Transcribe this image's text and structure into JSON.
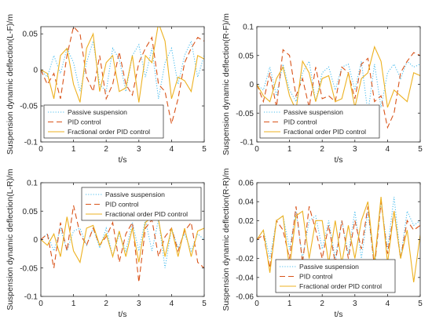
{
  "colors": {
    "passive": "#4DBEEE",
    "pid": "#D95319",
    "fractional": "#EDB120",
    "axis": "#262626"
  },
  "chart_data": [
    {
      "type": "line",
      "ylabel": "Suspension dynamic deflection(L-F)/m",
      "xlabel": "t/s",
      "xlim": [
        0,
        5
      ],
      "ylim": [
        -0.1,
        0.06
      ],
      "xticks": [
        0,
        1,
        2,
        3,
        4,
        5
      ],
      "yticks": [
        -0.1,
        -0.05,
        0,
        0.05
      ],
      "ytick_labels": [
        "-0.1",
        "-0.05",
        "0",
        "0.05"
      ],
      "legend_position": "bottom-left",
      "series": [
        {
          "name": "Passive suspension",
          "style": "dotted",
          "x": [
            0,
            0.2,
            0.4,
            0.6,
            0.8,
            1.0,
            1.2,
            1.4,
            1.6,
            1.8,
            2.0,
            2.2,
            2.4,
            2.6,
            2.8,
            3.0,
            3.2,
            3.4,
            3.6,
            3.8,
            4.0,
            4.2,
            4.4,
            4.6,
            4.8,
            5.0
          ],
          "y": [
            0,
            -0.01,
            0.02,
            -0.005,
            0.03,
            0.01,
            -0.03,
            0.01,
            0.04,
            -0.02,
            -0.03,
            0.03,
            0.015,
            -0.03,
            0.02,
            0.035,
            -0.01,
            0.03,
            -0.04,
            0.01,
            0.03,
            -0.02,
            0.02,
            0.04,
            -0.01,
            0.02
          ]
        },
        {
          "name": "PID control",
          "style": "dashed",
          "x": [
            0,
            0.2,
            0.4,
            0.6,
            0.8,
            1.0,
            1.2,
            1.4,
            1.6,
            1.8,
            2.0,
            2.2,
            2.4,
            2.6,
            2.8,
            3.0,
            3.2,
            3.4,
            3.6,
            3.8,
            4.0,
            4.2,
            4.4,
            4.6,
            4.8,
            5.0
          ],
          "y": [
            0,
            -0.02,
            -0.005,
            -0.04,
            0.02,
            0.06,
            0.05,
            -0.01,
            -0.03,
            0.02,
            -0.04,
            -0.02,
            0.025,
            -0.02,
            -0.035,
            0.01,
            0.03,
            0.045,
            -0.02,
            -0.03,
            -0.075,
            -0.04,
            0.01,
            0.03,
            0.045,
            0.04
          ]
        },
        {
          "name": "Fractional order PID control",
          "style": "solid",
          "x": [
            0,
            0.2,
            0.4,
            0.6,
            0.8,
            1.0,
            1.2,
            1.4,
            1.6,
            1.8,
            2.0,
            2.2,
            2.4,
            2.6,
            2.8,
            3.0,
            3.2,
            3.4,
            3.6,
            3.8,
            4.0,
            4.2,
            4.4,
            4.6,
            4.8,
            5.0
          ],
          "y": [
            0,
            -0.005,
            -0.04,
            0.02,
            0.03,
            -0.02,
            -0.045,
            0.03,
            0.05,
            -0.03,
            0.01,
            0.02,
            -0.03,
            -0.025,
            0.02,
            -0.045,
            0.02,
            0.01,
            0.065,
            0.04,
            -0.04,
            -0.01,
            -0.015,
            -0.03,
            0.02,
            0.015
          ]
        }
      ]
    },
    {
      "type": "line",
      "ylabel": "Suspension dynamic deflection(R-F)/m",
      "xlabel": "t/s",
      "xlim": [
        0,
        5
      ],
      "ylim": [
        -0.1,
        0.1
      ],
      "xticks": [
        0,
        1,
        2,
        3,
        4,
        5
      ],
      "yticks": [
        -0.1,
        -0.05,
        0,
        0.05,
        0.1
      ],
      "ytick_labels": [
        "-0.1",
        "-0.05",
        "0",
        "0.05",
        "0.1"
      ],
      "legend_position": "bottom-left",
      "series": [
        {
          "name": "Passive suspension",
          "style": "dotted",
          "x": [
            0,
            0.2,
            0.4,
            0.6,
            0.8,
            1.0,
            1.2,
            1.4,
            1.6,
            1.8,
            2.0,
            2.2,
            2.4,
            2.6,
            2.8,
            3.0,
            3.2,
            3.4,
            3.6,
            3.8,
            4.0,
            4.2,
            4.4,
            4.6,
            4.8,
            5.0
          ],
          "y": [
            0,
            -0.01,
            0.03,
            -0.02,
            0.035,
            -0.01,
            -0.03,
            0.02,
            0.04,
            -0.03,
            0.02,
            0.03,
            -0.01,
            0.03,
            0.035,
            -0.01,
            0.04,
            -0.05,
            0.035,
            -0.04,
            0.02,
            0.035,
            0.01,
            0.04,
            0.03,
            0.035
          ]
        },
        {
          "name": "PID control",
          "style": "dashed",
          "x": [
            0,
            0.2,
            0.4,
            0.6,
            0.8,
            1.0,
            1.2,
            1.4,
            1.6,
            1.8,
            2.0,
            2.2,
            2.4,
            2.6,
            2.8,
            3.0,
            3.2,
            3.4,
            3.6,
            3.8,
            4.0,
            4.2,
            4.4,
            4.6,
            4.8,
            5.0
          ],
          "y": [
            0,
            -0.03,
            0.02,
            -0.04,
            0.06,
            0.05,
            -0.02,
            0.01,
            -0.04,
            0.03,
            -0.025,
            -0.02,
            -0.03,
            0.03,
            0.02,
            -0.025,
            0.035,
            0.045,
            -0.03,
            -0.02,
            -0.075,
            -0.05,
            0.02,
            0.04,
            0.055,
            0.05
          ]
        },
        {
          "name": "Fractional order PID control",
          "style": "solid",
          "x": [
            0,
            0.2,
            0.4,
            0.6,
            0.8,
            1.0,
            1.2,
            1.4,
            1.6,
            1.8,
            2.0,
            2.2,
            2.4,
            2.6,
            2.8,
            3.0,
            3.2,
            3.4,
            3.6,
            3.8,
            4.0,
            4.2,
            4.4,
            4.6,
            4.8,
            5.0
          ],
          "y": [
            0,
            -0.02,
            -0.03,
            0.01,
            0.03,
            -0.02,
            -0.045,
            0.04,
            0.02,
            -0.03,
            0.01,
            0.015,
            -0.03,
            -0.025,
            0.02,
            -0.04,
            0.01,
            0.02,
            0.065,
            0.04,
            -0.04,
            -0.01,
            -0.02,
            -0.03,
            0.02,
            0.015
          ]
        }
      ]
    },
    {
      "type": "line",
      "ylabel": "Suspension dynamic deflection(L-R)/m",
      "xlabel": "t/s",
      "xlim": [
        0,
        5
      ],
      "ylim": [
        -0.1,
        0.1
      ],
      "xticks": [
        0,
        1,
        2,
        3,
        4,
        5
      ],
      "yticks": [
        -0.1,
        -0.05,
        0,
        0.05,
        0.1
      ],
      "ytick_labels": [
        "-0.1",
        "-0.05",
        "0",
        "0.05",
        "0.1"
      ],
      "legend_position": "top-right",
      "series": [
        {
          "name": "Passive suspension",
          "style": "dotted",
          "x": [
            0,
            0.2,
            0.4,
            0.6,
            0.8,
            1.0,
            1.2,
            1.4,
            1.6,
            1.8,
            2.0,
            2.2,
            2.4,
            2.6,
            2.8,
            3.0,
            3.2,
            3.4,
            3.6,
            3.8,
            4.0,
            4.2,
            4.4,
            4.6,
            4.8,
            5.0
          ],
          "y": [
            0,
            0.01,
            -0.02,
            0.02,
            -0.02,
            0.015,
            0.02,
            -0.01,
            0.02,
            -0.015,
            0.02,
            -0.03,
            0.01,
            -0.02,
            0.03,
            -0.02,
            0.035,
            -0.02,
            0.035,
            -0.05,
            0.02,
            -0.015,
            0.01,
            -0.02,
            0.01,
            0
          ]
        },
        {
          "name": "PID control",
          "style": "dashed",
          "x": [
            0,
            0.2,
            0.4,
            0.6,
            0.8,
            1.0,
            1.2,
            1.4,
            1.6,
            1.8,
            2.0,
            2.2,
            2.4,
            2.6,
            2.8,
            3.0,
            3.2,
            3.4,
            3.6,
            3.8,
            4.0,
            4.2,
            4.4,
            4.6,
            4.8,
            5.0
          ],
          "y": [
            0,
            0.01,
            -0.05,
            0.03,
            -0.02,
            0.06,
            0.01,
            -0.01,
            0.02,
            -0.01,
            0.005,
            0.03,
            -0.04,
            0.01,
            0.03,
            -0.075,
            0.02,
            0.035,
            -0.03,
            0.005,
            0.02,
            -0.02,
            0.015,
            0.03,
            -0.04,
            -0.05
          ]
        },
        {
          "name": "Fractional order PID control",
          "style": "solid",
          "x": [
            0,
            0.2,
            0.4,
            0.6,
            0.8,
            1.0,
            1.2,
            1.4,
            1.6,
            1.8,
            2.0,
            2.2,
            2.4,
            2.6,
            2.8,
            3.0,
            3.2,
            3.4,
            3.6,
            3.8,
            4.0,
            4.2,
            4.4,
            4.6,
            4.8,
            5.0
          ],
          "y": [
            0,
            -0.01,
            0.01,
            -0.03,
            0.04,
            -0.02,
            -0.04,
            0.02,
            0.025,
            -0.01,
            0.01,
            -0.03,
            0.015,
            -0.03,
            0.02,
            -0.04,
            0.03,
            0.04,
            0.035,
            -0.03,
            0.02,
            -0.03,
            0.02,
            -0.03,
            0.015,
            0.02
          ]
        }
      ]
    },
    {
      "type": "line",
      "ylabel": "Suspension dynamic deflection(R-R)/m",
      "xlabel": "t/s",
      "xlim": [
        0,
        5
      ],
      "ylim": [
        -0.06,
        0.06
      ],
      "xticks": [
        0,
        1,
        2,
        3,
        4,
        5
      ],
      "yticks": [
        -0.06,
        -0.04,
        -0.02,
        0,
        0.02,
        0.04,
        0.06
      ],
      "ytick_labels": [
        "-0.06",
        "-0.04",
        "-0.02",
        "0",
        "0.02",
        "0.04",
        "0.06"
      ],
      "legend_position": "bottom-right",
      "series": [
        {
          "name": "Passive suspension",
          "style": "dotted",
          "x": [
            0,
            0.2,
            0.4,
            0.6,
            0.8,
            1.0,
            1.2,
            1.4,
            1.6,
            1.8,
            2.0,
            2.2,
            2.4,
            2.6,
            2.8,
            3.0,
            3.2,
            3.4,
            3.6,
            3.8,
            4.0,
            4.2,
            4.4,
            4.6,
            4.8,
            5.0
          ],
          "y": [
            0,
            0.01,
            -0.02,
            0.02,
            0.025,
            -0.01,
            0.03,
            -0.02,
            0.02,
            0.025,
            -0.01,
            0.02,
            -0.02,
            0.02,
            -0.015,
            0.03,
            -0.02,
            0.03,
            -0.03,
            0.04,
            -0.01,
            0.045,
            -0.02,
            0.03,
            0.015,
            0.02
          ]
        },
        {
          "name": "PID control",
          "style": "dashed",
          "x": [
            0,
            0.2,
            0.4,
            0.6,
            0.8,
            1.0,
            1.2,
            1.4,
            1.6,
            1.8,
            2.0,
            2.2,
            2.4,
            2.6,
            2.8,
            3.0,
            3.2,
            3.4,
            3.6,
            3.8,
            4.0,
            4.2,
            4.4,
            4.6,
            4.8,
            5.0
          ],
          "y": [
            0,
            0.005,
            -0.03,
            0.02,
            0.01,
            -0.02,
            0.035,
            -0.025,
            0.035,
            0.01,
            -0.02,
            0.015,
            -0.025,
            0.02,
            -0.02,
            0.02,
            -0.01,
            0.035,
            -0.03,
            0.04,
            -0.015,
            0.03,
            -0.02,
            0.02,
            0.01,
            0.015
          ]
        },
        {
          "name": "Fractional order PID control",
          "style": "solid",
          "x": [
            0,
            0.2,
            0.4,
            0.6,
            0.8,
            1.0,
            1.2,
            1.4,
            1.6,
            1.8,
            2.0,
            2.2,
            2.4,
            2.6,
            2.8,
            3.0,
            3.2,
            3.4,
            3.6,
            3.8,
            4.0,
            4.2,
            4.4,
            4.6,
            4.8,
            5.0
          ],
          "y": [
            0,
            0.01,
            -0.035,
            0.02,
            0.025,
            -0.03,
            0.025,
            0.03,
            -0.02,
            0.02,
            0.02,
            -0.025,
            0.02,
            -0.025,
            0.015,
            -0.02,
            0.02,
            0.04,
            -0.025,
            0.045,
            -0.025,
            0.03,
            -0.02,
            0.01,
            -0.045,
            0.005
          ]
        }
      ]
    }
  ]
}
